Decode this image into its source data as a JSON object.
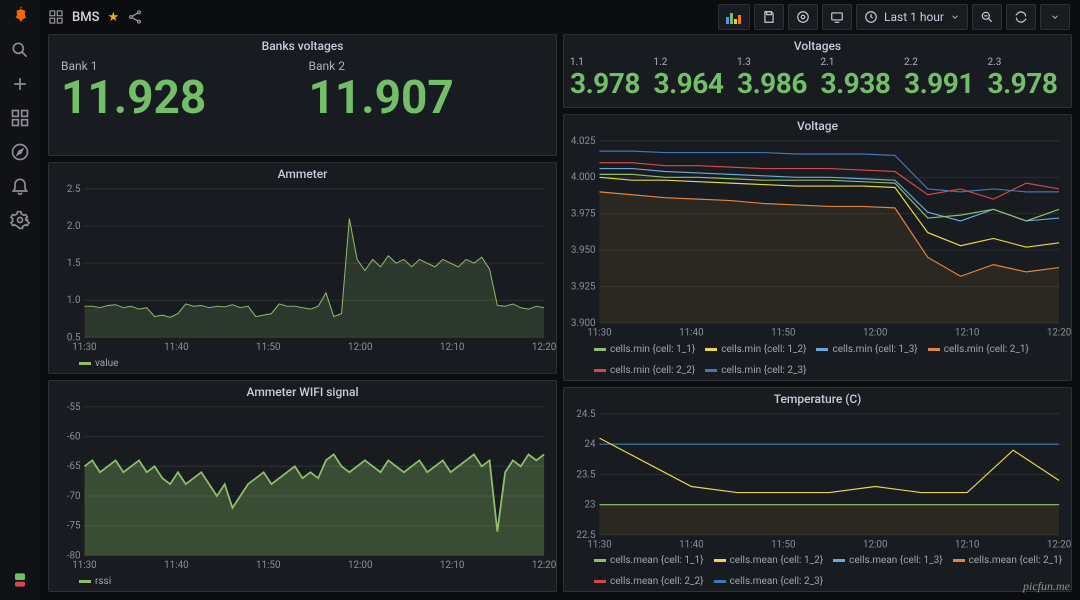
{
  "colors": {
    "background": "#0b0c0e",
    "panel_bg": "#181b1f",
    "border": "#2c3235",
    "grid": "#2c3235",
    "text": "#ccccdc",
    "text_muted": "#8a8f98",
    "green_stat": "#73bf69",
    "star": "#f5a623"
  },
  "header": {
    "title": "BMS",
    "time_range": "Last 1 hour"
  },
  "banks_voltages": {
    "title": "Banks voltages",
    "items": [
      {
        "label": "Bank 1",
        "value": "11.928"
      },
      {
        "label": "Bank 2",
        "value": "11.907"
      }
    ]
  },
  "voltages_stat": {
    "title": "Voltages",
    "items": [
      {
        "label": "1.1",
        "value": "3.978"
      },
      {
        "label": "1.2",
        "value": "3.964"
      },
      {
        "label": "1.3",
        "value": "3.986"
      },
      {
        "label": "2.1",
        "value": "3.938"
      },
      {
        "label": "2.2",
        "value": "3.991"
      },
      {
        "label": "2.3",
        "value": "3.978"
      }
    ]
  },
  "charts": {
    "x_ticks": [
      "11:30",
      "11:40",
      "11:50",
      "12:00",
      "12:10",
      "12:20"
    ],
    "ammeter": {
      "title": "Ammeter",
      "ylim": [
        0.5,
        2.5
      ],
      "yticks": [
        0.5,
        1.0,
        1.5,
        2.0,
        2.5
      ],
      "legend": [
        {
          "label": "value",
          "color": "#8fbf6b"
        }
      ],
      "series_color": "#8fbf6b",
      "fill_opacity": 0.18,
      "data": [
        0.92,
        0.92,
        0.9,
        0.93,
        0.94,
        0.9,
        0.92,
        0.88,
        0.9,
        0.78,
        0.8,
        0.77,
        0.82,
        0.95,
        0.92,
        0.93,
        0.9,
        0.92,
        0.91,
        0.94,
        0.9,
        0.92,
        0.78,
        0.8,
        0.82,
        0.95,
        0.92,
        0.92,
        0.9,
        0.88,
        0.92,
        1.1,
        0.78,
        0.82,
        2.1,
        1.55,
        1.4,
        1.55,
        1.45,
        1.6,
        1.5,
        1.55,
        1.45,
        1.55,
        1.5,
        1.45,
        1.55,
        1.5,
        1.45,
        1.55,
        1.5,
        1.58,
        1.42,
        0.93,
        0.92,
        0.95,
        0.9,
        0.88,
        0.92,
        0.9
      ]
    },
    "wifi": {
      "title": "Ammeter WIFI signal",
      "ylim": [
        -80,
        -55
      ],
      "yticks": [
        -80,
        -75,
        -70,
        -65,
        -60,
        -55
      ],
      "legend": [
        {
          "label": "rssi",
          "color": "#8fbf6b"
        }
      ],
      "series_color": "#8fbf6b",
      "fill_opacity": 0.3,
      "thick": true,
      "data": [
        -65,
        -64,
        -66,
        -65,
        -64,
        -66,
        -65,
        -64,
        -66,
        -65,
        -67,
        -68,
        -66,
        -68,
        -67,
        -66,
        -68,
        -70,
        -68,
        -72,
        -70,
        -68,
        -67,
        -66,
        -68,
        -67,
        -66,
        -65,
        -67,
        -66,
        -67,
        -64,
        -63,
        -65,
        -66,
        -65,
        -64,
        -65,
        -66,
        -64,
        -65,
        -66,
        -65,
        -64,
        -66,
        -65,
        -64,
        -66,
        -65,
        -64,
        -63,
        -65,
        -64,
        -76,
        -66,
        -64,
        -65,
        -63,
        -64,
        -63
      ]
    },
    "voltage": {
      "title": "Voltage",
      "ylim": [
        3.9,
        4.025
      ],
      "yticks": [
        3.9,
        3.925,
        3.95,
        3.975,
        4.0,
        4.025
      ],
      "fill_color": "#5a4a2a",
      "fill_opacity": 0.3,
      "legend": [
        {
          "label": "cells.min {cell: 1_1}",
          "color": "#8fbf6b"
        },
        {
          "label": "cells.min {cell: 1_2}",
          "color": "#ead749"
        },
        {
          "label": "cells.min {cell: 1_3}",
          "color": "#6aa6d6"
        },
        {
          "label": "cells.min {cell: 2_1}",
          "color": "#e0853b"
        },
        {
          "label": "cells.min {cell: 2_2}",
          "color": "#d14949"
        },
        {
          "label": "cells.min {cell: 2_3}",
          "color": "#3f78b3"
        }
      ],
      "series": [
        {
          "color": "#3f78b3",
          "data": [
            4.018,
            4.018,
            4.017,
            4.017,
            4.017,
            4.017,
            4.016,
            4.016,
            4.016,
            4.015,
            3.992,
            3.99,
            3.992,
            3.99,
            3.99
          ]
        },
        {
          "color": "#d14949",
          "data": [
            4.01,
            4.01,
            4.008,
            4.008,
            4.007,
            4.006,
            4.006,
            4.006,
            4.005,
            4.004,
            3.988,
            3.992,
            3.985,
            3.996,
            3.992
          ]
        },
        {
          "color": "#6aa6d6",
          "data": [
            4.006,
            4.006,
            4.004,
            4.003,
            4.002,
            4.001,
            4.0,
            4.0,
            3.999,
            3.998,
            3.976,
            3.97,
            3.978,
            3.97,
            3.972
          ]
        },
        {
          "color": "#8fbf6b",
          "data": [
            4.002,
            4.002,
            4.0,
            4.0,
            3.999,
            3.998,
            3.998,
            3.998,
            3.997,
            3.996,
            3.972,
            3.974,
            3.978,
            3.97,
            3.978
          ]
        },
        {
          "color": "#ead749",
          "data": [
            4.0,
            3.998,
            3.998,
            3.997,
            3.996,
            3.995,
            3.994,
            3.994,
            3.994,
            3.993,
            3.962,
            3.953,
            3.958,
            3.952,
            3.955
          ]
        },
        {
          "color": "#e0853b",
          "data": [
            3.99,
            3.988,
            3.986,
            3.985,
            3.984,
            3.982,
            3.981,
            3.98,
            3.98,
            3.979,
            3.945,
            3.932,
            3.94,
            3.935,
            3.938
          ]
        }
      ]
    },
    "temperature": {
      "title": "Temperature (C)",
      "ylim": [
        22.5,
        24.5
      ],
      "yticks": [
        22.5,
        23.0,
        23.5,
        24.0,
        24.5
      ],
      "fill_color": "#5a4a2a",
      "fill_opacity": 0.3,
      "legend": [
        {
          "label": "cells.mean {cell: 1_1}",
          "color": "#8fbf6b"
        },
        {
          "label": "cells.mean {cell: 1_2}",
          "color": "#ead749"
        },
        {
          "label": "cells.mean {cell: 1_3}",
          "color": "#6aa6d6"
        },
        {
          "label": "cells.mean {cell: 2_1}",
          "color": "#e0853b"
        },
        {
          "label": "cells.mean {cell: 2_2}",
          "color": "#d14949"
        },
        {
          "label": "cells.mean {cell: 2_3}",
          "color": "#3f78b3"
        }
      ],
      "series": [
        {
          "color": "#3f78b3",
          "data": [
            24.0,
            24.0,
            24.0,
            24.0,
            24.0,
            24.0,
            24.0,
            24.0,
            24.0,
            24.0,
            24.0
          ]
        },
        {
          "color": "#ead749",
          "data": [
            24.1,
            23.7,
            23.3,
            23.2,
            23.2,
            23.2,
            23.3,
            23.2,
            23.2,
            23.9,
            23.4
          ]
        },
        {
          "color": "#8fbf6b",
          "data": [
            23.0,
            23.0,
            23.0,
            23.0,
            23.0,
            23.0,
            23.0,
            23.0,
            23.0,
            23.0,
            23.0
          ]
        }
      ]
    }
  },
  "watermark": "picfun.me"
}
